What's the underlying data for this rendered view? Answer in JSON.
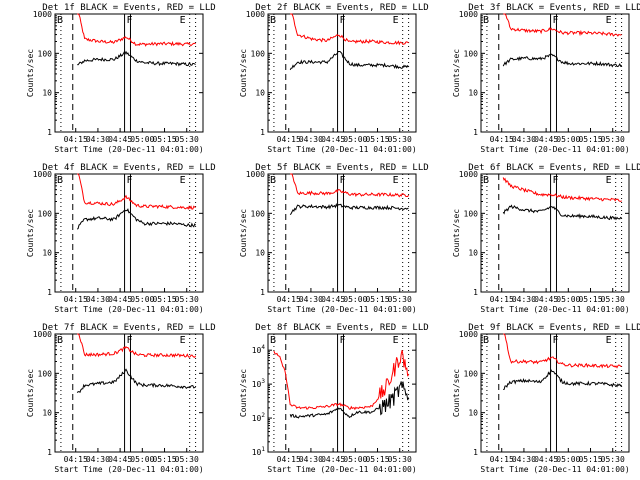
{
  "colors": {
    "events": "#000000",
    "lld": "#ff0000",
    "axes": "#000000",
    "background": "#ffffff"
  },
  "shared": {
    "xlabel": "Start Time (20-Dec-11 04:01:00)",
    "ylabel": "Counts/sec",
    "x_ticks": [
      "04:15",
      "04:30",
      "04:45",
      "05:00",
      "05:15",
      "05:30"
    ],
    "y_ticks_standard": [
      "1",
      "10",
      "100",
      "1000"
    ],
    "y_ticks_det8": [
      "10^1",
      "10^2",
      "10^3",
      "10^4"
    ],
    "markers": {
      "left": "B",
      "middle": "F",
      "right": "E"
    }
  },
  "chart_data": [
    {
      "type": "line",
      "title": "Det 1f BLACK = Events, RED = LLD",
      "xlabel": "Start Time (20-Dec-11 04:01:00)",
      "ylabel": "Counts/sec",
      "yscale": "log",
      "ylim": [
        1,
        1000
      ],
      "x_minutes": [
        4,
        8,
        15,
        20,
        30,
        40,
        48,
        55,
        60,
        70,
        80,
        90,
        95
      ],
      "series": [
        {
          "color": "red",
          "values": [
            null,
            null,
            1500,
            230,
            200,
            190,
            260,
            170,
            170,
            175,
            175,
            170,
            175
          ]
        },
        {
          "color": "black",
          "values": [
            null,
            null,
            50,
            65,
            70,
            70,
            105,
            65,
            58,
            55,
            55,
            52,
            52
          ]
        }
      ]
    },
    {
      "type": "line",
      "title": "Det 2f BLACK = Events, RED = LLD",
      "xlabel": "Start Time (20-Dec-11 04:01:00)",
      "ylabel": "Counts/sec",
      "yscale": "log",
      "ylim": [
        1,
        1000
      ],
      "x_minutes": [
        4,
        8,
        15,
        20,
        30,
        40,
        48,
        55,
        60,
        70,
        80,
        90,
        95
      ],
      "series": [
        {
          "color": "red",
          "values": [
            null,
            null,
            1500,
            300,
            230,
            210,
            300,
            190,
            200,
            200,
            190,
            185,
            185
          ]
        },
        {
          "color": "black",
          "values": [
            null,
            null,
            40,
            60,
            60,
            60,
            110,
            55,
            50,
            50,
            50,
            45,
            45
          ]
        }
      ]
    },
    {
      "type": "line",
      "title": "Det 3f BLACK = Events, RED = LLD",
      "xlabel": "Start Time (20-Dec-11 04:01:00)",
      "ylabel": "Counts/sec",
      "yscale": "log",
      "ylim": [
        1,
        1000
      ],
      "x_minutes": [
        4,
        8,
        15,
        20,
        30,
        40,
        48,
        55,
        60,
        70,
        80,
        90,
        95
      ],
      "series": [
        {
          "color": "red",
          "values": [
            null,
            null,
            1500,
            420,
            380,
            360,
            420,
            330,
            330,
            330,
            320,
            300,
            300
          ]
        },
        {
          "color": "black",
          "values": [
            null,
            null,
            50,
            70,
            75,
            72,
            90,
            60,
            55,
            55,
            55,
            50,
            50
          ]
        }
      ]
    },
    {
      "type": "line",
      "title": "Det 4f BLACK = Events, RED = LLD",
      "xlabel": "Start Time (20-Dec-11 04:01:00)",
      "ylabel": "Counts/sec",
      "yscale": "log",
      "ylim": [
        1,
        1000
      ],
      "x_minutes": [
        4,
        8,
        15,
        20,
        30,
        40,
        48,
        55,
        60,
        70,
        80,
        90,
        95
      ],
      "series": [
        {
          "color": "red",
          "values": [
            null,
            null,
            1500,
            190,
            180,
            170,
            260,
            160,
            150,
            150,
            145,
            140,
            140
          ]
        },
        {
          "color": "black",
          "values": [
            null,
            null,
            40,
            70,
            75,
            70,
            130,
            70,
            55,
            55,
            55,
            50,
            50
          ]
        }
      ]
    },
    {
      "type": "line",
      "title": "Det 5f BLACK = Events, RED = LLD",
      "xlabel": "Start Time (20-Dec-11 04:01:00)",
      "ylabel": "Counts/sec",
      "yscale": "log",
      "ylim": [
        1,
        1000
      ],
      "x_minutes": [
        4,
        8,
        15,
        20,
        30,
        40,
        48,
        55,
        60,
        70,
        80,
        90,
        95
      ],
      "series": [
        {
          "color": "red",
          "values": [
            null,
            null,
            1500,
            320,
            330,
            320,
            370,
            310,
            300,
            300,
            300,
            290,
            290
          ]
        },
        {
          "color": "black",
          "values": [
            null,
            null,
            100,
            150,
            150,
            145,
            160,
            140,
            140,
            140,
            140,
            135,
            135
          ]
        }
      ]
    },
    {
      "type": "line",
      "title": "Det 6f BLACK = Events, RED = LLD",
      "xlabel": "Start Time (20-Dec-11 04:01:00)",
      "ylabel": "Counts/sec",
      "yscale": "log",
      "ylim": [
        1,
        1000
      ],
      "x_minutes": [
        4,
        8,
        15,
        20,
        30,
        40,
        48,
        55,
        60,
        70,
        80,
        90,
        95
      ],
      "series": [
        {
          "color": "red",
          "values": [
            null,
            null,
            800,
            500,
            380,
            300,
            300,
            260,
            250,
            240,
            230,
            220,
            210
          ]
        },
        {
          "color": "black",
          "values": [
            null,
            null,
            100,
            150,
            120,
            110,
            150,
            90,
            85,
            85,
            80,
            75,
            75
          ]
        }
      ]
    },
    {
      "type": "line",
      "title": "Det 7f BLACK = Events, RED = LLD",
      "xlabel": "Start Time (20-Dec-11 04:01:00)",
      "ylabel": "Counts/sec",
      "yscale": "log",
      "ylim": [
        1,
        1000
      ],
      "x_minutes": [
        4,
        8,
        15,
        20,
        30,
        40,
        48,
        55,
        60,
        70,
        80,
        90,
        95
      ],
      "series": [
        {
          "color": "red",
          "values": [
            null,
            null,
            1500,
            300,
            300,
            320,
            450,
            300,
            290,
            290,
            290,
            280,
            280
          ]
        },
        {
          "color": "black",
          "values": [
            null,
            null,
            30,
            50,
            55,
            60,
            120,
            55,
            50,
            50,
            48,
            45,
            45
          ]
        }
      ]
    },
    {
      "type": "line",
      "title": "Det 8f BLACK = Events, RED = LLD",
      "xlabel": "Start Time (20-Dec-11 04:01:00)",
      "ylabel": "Counts/sec",
      "yscale": "log",
      "ylim": [
        10,
        30000
      ],
      "x_minutes": [
        4,
        8,
        12,
        15,
        20,
        30,
        40,
        48,
        55,
        60,
        70,
        80,
        85,
        90,
        95
      ],
      "series": [
        {
          "color": "red",
          "values": [
            9000,
            6000,
            2000,
            250,
            200,
            200,
            220,
            260,
            200,
            200,
            220,
            800,
            2500,
            8000,
            2000
          ]
        },
        {
          "color": "black",
          "values": [
            null,
            null,
            null,
            120,
            110,
            120,
            130,
            200,
            110,
            150,
            150,
            250,
            400,
            800,
            400
          ]
        }
      ]
    },
    {
      "type": "line",
      "title": "Det 9f BLACK = Events, RED = LLD",
      "xlabel": "Start Time (20-Dec-11 04:01:00)",
      "ylabel": "Counts/sec",
      "yscale": "log",
      "ylim": [
        1,
        1000
      ],
      "x_minutes": [
        4,
        8,
        15,
        20,
        30,
        40,
        48,
        55,
        60,
        70,
        80,
        90,
        95
      ],
      "series": [
        {
          "color": "red",
          "values": [
            null,
            null,
            1500,
            200,
            200,
            190,
            250,
            170,
            160,
            160,
            155,
            150,
            150
          ]
        },
        {
          "color": "black",
          "values": [
            null,
            null,
            40,
            60,
            65,
            60,
            120,
            60,
            55,
            55,
            55,
            50,
            50
          ]
        }
      ]
    }
  ]
}
